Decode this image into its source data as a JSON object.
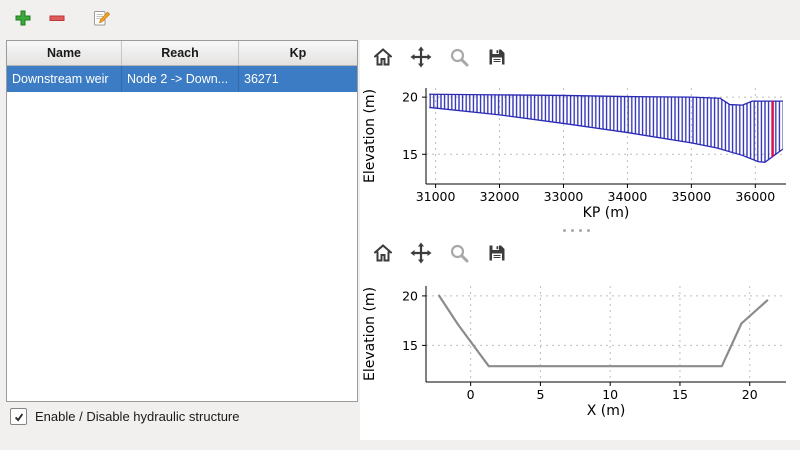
{
  "window": {
    "background": "#f1f0ee"
  },
  "main_toolbar": {
    "add_tip": "Add structure",
    "remove_tip": "Remove structure",
    "edit_tip": "Edit structure"
  },
  "table": {
    "columns": [
      "Name",
      "Reach",
      "Kp"
    ],
    "rows": [
      {
        "name": "Downstream weir",
        "reach": "Node 2 -> Down...",
        "kp": "36271",
        "selected": true
      }
    ]
  },
  "footer": {
    "checkbox_label": "Enable / Disable hydraulic structure",
    "checked": true
  },
  "icons": {
    "add": "green-plus",
    "remove": "red-minus",
    "edit": "paper-with-pencil",
    "home": "house",
    "pan": "four-way-arrows",
    "zoom": "magnifier",
    "save": "floppy-disk"
  },
  "colors": {
    "selection_blue": "#3b7cc4",
    "hatch_blue": "#2929b5",
    "marker_red": "#d8174f",
    "section_gray": "#8c8c8c",
    "grid_gray": "#bdbdbd"
  },
  "chart_data": [
    {
      "type": "area",
      "title": "",
      "xlabel": "KP (m)",
      "ylabel": "Elevation (m)",
      "xlim": [
        30850,
        36480
      ],
      "ylim": [
        12.4,
        20.8
      ],
      "xticks": [
        31000,
        32000,
        33000,
        34000,
        35000,
        36000
      ],
      "yticks": [
        15,
        20
      ],
      "grid": true,
      "hatch_color": "#2929b5",
      "band": {
        "top": [
          [
            30900,
            20.25
          ],
          [
            32000,
            20.2
          ],
          [
            33000,
            20.15
          ],
          [
            34000,
            20.05
          ],
          [
            35000,
            20.0
          ],
          [
            35450,
            19.9
          ],
          [
            35600,
            19.35
          ],
          [
            35800,
            19.3
          ],
          [
            35950,
            19.65
          ],
          [
            36430,
            19.65
          ]
        ],
        "bottom": [
          [
            30900,
            19.1
          ],
          [
            32000,
            18.45
          ],
          [
            33000,
            17.7
          ],
          [
            34000,
            16.9
          ],
          [
            35000,
            16.0
          ],
          [
            35400,
            15.55
          ],
          [
            35800,
            14.9
          ],
          [
            36050,
            14.35
          ],
          [
            36150,
            14.3
          ],
          [
            36430,
            15.45
          ]
        ]
      },
      "marker": {
        "x": 36271,
        "color": "#d8174f"
      }
    },
    {
      "type": "line",
      "title": "",
      "xlabel": "X (m)",
      "ylabel": "Elevation (m)",
      "xlim": [
        -3.2,
        22.6
      ],
      "ylim": [
        11.3,
        21.0
      ],
      "xticks": [
        0,
        5,
        10,
        15,
        20
      ],
      "yticks": [
        15,
        20
      ],
      "grid": true,
      "line_color": "#8c8c8c",
      "points": [
        [
          -2.3,
          20.1
        ],
        [
          -0.9,
          17.1
        ],
        [
          1.3,
          12.9
        ],
        [
          18.0,
          12.9
        ],
        [
          19.4,
          17.2
        ],
        [
          21.3,
          19.6
        ]
      ]
    }
  ]
}
